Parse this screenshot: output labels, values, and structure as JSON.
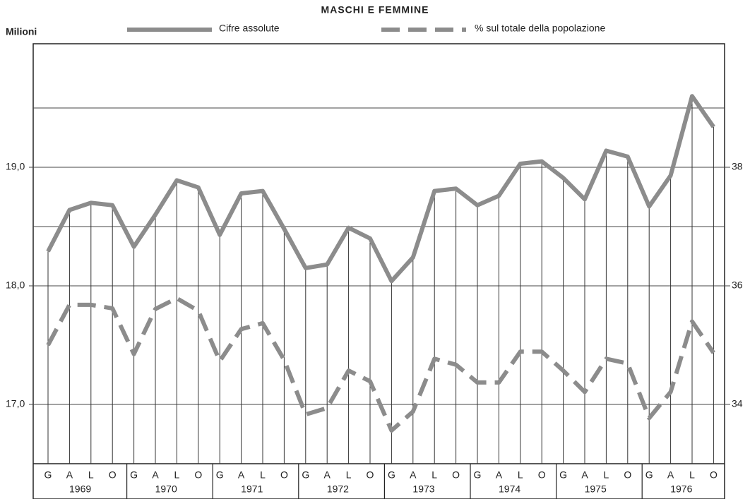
{
  "chart_data": {
    "type": "line",
    "title": "MASCHI E FEMMINE",
    "y_label": "Milioni",
    "categories": [
      "G",
      "A",
      "L",
      "O",
      "G",
      "A",
      "L",
      "O",
      "G",
      "A",
      "L",
      "O",
      "G",
      "A",
      "L",
      "O",
      "G",
      "A",
      "L",
      "O",
      "G",
      "A",
      "L",
      "O",
      "G",
      "A",
      "L",
      "O",
      "G",
      "A",
      "L",
      "O"
    ],
    "years": [
      "1969",
      "1970",
      "1971",
      "1972",
      "1973",
      "1974",
      "1975",
      "1976"
    ],
    "series": [
      {
        "name": "Cifre assolute",
        "color": "#8c8c8c",
        "dash": false,
        "axis": "y",
        "values": [
          18.29,
          18.64,
          18.7,
          18.68,
          18.33,
          18.6,
          18.89,
          18.83,
          18.43,
          18.78,
          18.8,
          18.48,
          18.15,
          18.18,
          18.49,
          18.4,
          18.04,
          18.24,
          18.8,
          18.82,
          18.68,
          18.76,
          19.03,
          19.05,
          18.91,
          18.73,
          19.14,
          19.09,
          18.67,
          18.93,
          19.6,
          19.34
        ]
      },
      {
        "name": "% sul totale della popolazione",
        "color": "#8c8c8c",
        "dash": true,
        "axis": "y2",
        "values": [
          35.0,
          35.68,
          35.68,
          35.62,
          34.85,
          35.61,
          35.79,
          35.58,
          34.73,
          35.27,
          35.37,
          34.75,
          33.83,
          33.94,
          34.57,
          34.39,
          33.56,
          33.88,
          34.77,
          34.67,
          34.37,
          34.37,
          34.89,
          34.89,
          34.57,
          34.21,
          34.77,
          34.69,
          33.77,
          34.21,
          35.4,
          34.87
        ]
      }
    ],
    "ylim": [
      16.5,
      20.0
    ],
    "yticks": [
      {
        "value": 17,
        "label": "17,0"
      },
      {
        "value": 18,
        "label": "18,0"
      },
      {
        "value": 19,
        "label": "19,0"
      }
    ],
    "minor_grid": [
      18.5,
      19.5
    ],
    "y2lim": [
      33,
      40
    ],
    "y2ticks": [
      34,
      36,
      38
    ],
    "grid": true
  }
}
